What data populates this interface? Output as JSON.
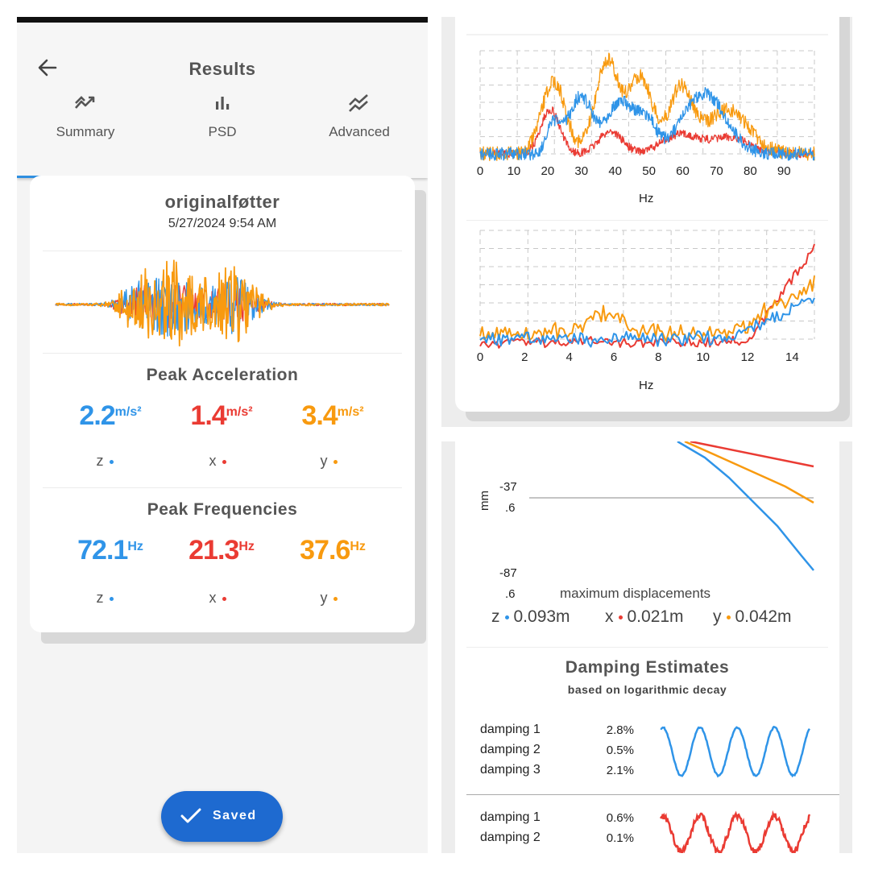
{
  "colors": {
    "z": "#2f94e8",
    "x": "#ea3b33",
    "y": "#f89a0f",
    "accent": "#2f8fe0",
    "button": "#1e6ad0"
  },
  "header": {
    "title": "Results",
    "back_icon": "arrow-left-icon"
  },
  "tabs": [
    {
      "label": "Summary",
      "icon": "trend-up-icon"
    },
    {
      "label": "PSD",
      "icon": "bar-chart-icon"
    },
    {
      "label": "Advanced",
      "icon": "multiline-chart-icon"
    }
  ],
  "summary": {
    "name": "originalføtter",
    "date": "5/27/2024 9:54 AM",
    "peak_acceleration": {
      "title": "Peak Acceleration",
      "unit": "m/s²",
      "z": "2.2",
      "x": "1.4",
      "y": "3.4"
    },
    "peak_frequencies": {
      "title": "Peak Frequencies",
      "unit": "Hz",
      "z": "72.1",
      "x": "21.3",
      "y": "37.6"
    },
    "axes": {
      "z": "z",
      "x": "x",
      "y": "y"
    }
  },
  "saved_button": {
    "label": "Saved"
  },
  "psd_top": {
    "ticks": [
      "0",
      "10",
      "20",
      "30",
      "40",
      "50",
      "60",
      "70",
      "80",
      "90"
    ],
    "xlabel": "Hz"
  },
  "psd_bottom": {
    "ticks": [
      "0",
      "2",
      "4",
      "6",
      "8",
      "10",
      "12",
      "14"
    ],
    "xlabel": "Hz"
  },
  "displacement": {
    "ylabel": "mm",
    "y_ticks": [
      [
        "-37",
        ".6"
      ],
      [
        "-87",
        ".6"
      ]
    ],
    "caption": "maximum displacements",
    "z": "0.093m",
    "x": "0.021m",
    "y": "0.042m"
  },
  "damping": {
    "title": "Damping Estimates",
    "subtitle": "based on logarithmic decay",
    "z_rows": [
      {
        "label": "damping 1",
        "value": "2.8%"
      },
      {
        "label": "damping 2",
        "value": "0.5%"
      },
      {
        "label": "damping 3",
        "value": "2.1%"
      }
    ],
    "x_rows": [
      {
        "label": "damping 1",
        "value": "0.6%"
      },
      {
        "label": "damping 2",
        "value": "0.1%"
      }
    ]
  }
}
